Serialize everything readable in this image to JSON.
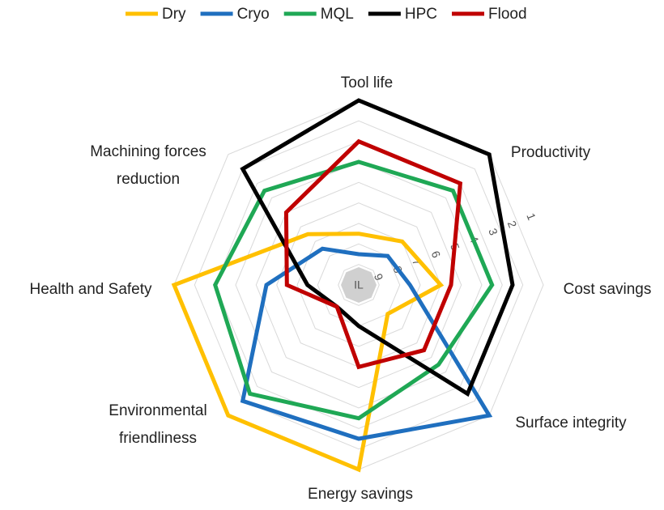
{
  "chart_data": {
    "type": "radar",
    "categories": [
      "Tool life",
      "Productivity",
      "Cost savings",
      "Surface integrity",
      "Energy savings",
      "Environmental friendliness",
      "Health and Safety",
      "Machining forces reduction"
    ],
    "series": [
      {
        "name": "Dry",
        "color": "#ffc000",
        "values": [
          7.5,
          7,
          6,
          8,
          1,
          1,
          1,
          6.5
        ]
      },
      {
        "name": "Cryo",
        "color": "#1f6fbf",
        "values": [
          8.5,
          8,
          7.5,
          1,
          2.5,
          2,
          5.5,
          7.5
        ]
      },
      {
        "name": "MQL",
        "color": "#1fa855",
        "values": [
          4,
          3.5,
          3.5,
          4.5,
          3.5,
          2.5,
          3,
          3.5
        ]
      },
      {
        "name": "HPC",
        "color": "#000000",
        "values": [
          1,
          1,
          2.5,
          2.5,
          8,
          8.5,
          7.5,
          2
        ]
      },
      {
        "name": "Flood",
        "color": "#c00000",
        "values": [
          3,
          3,
          5.5,
          5.5,
          6,
          8.5,
          6.5,
          5
        ]
      }
    ],
    "rlim": [
      10,
      1
    ],
    "rticks": [
      {
        "value": 10,
        "label": "IL"
      },
      9,
      8,
      7,
      6,
      5,
      4,
      3,
      2,
      1
    ],
    "grid": true,
    "legend": "top"
  }
}
